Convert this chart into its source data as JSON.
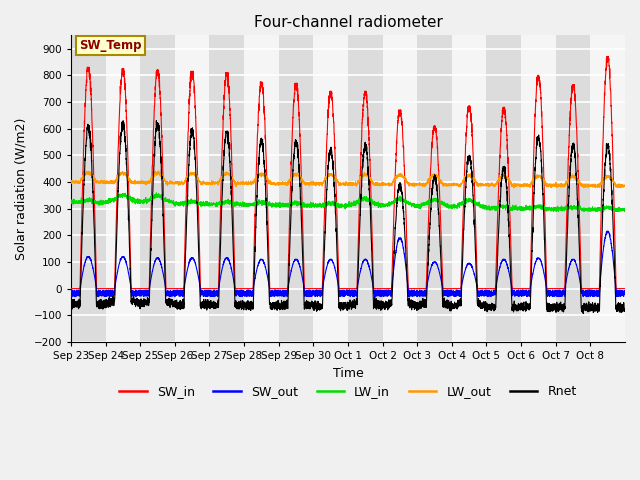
{
  "title": "Four-channel radiometer",
  "xlabel": "Time",
  "ylabel": "Solar radiation (W/m2)",
  "ylim": [
    -200,
    950
  ],
  "yticks": [
    -200,
    -100,
    0,
    100,
    200,
    300,
    400,
    500,
    600,
    700,
    800,
    900
  ],
  "bg_color": "#f0f0f0",
  "plot_bg_light": "#f5f5f5",
  "plot_bg_dark": "#dcdcdc",
  "grid_color": "#ffffff",
  "sw_in_color": "#ff0000",
  "sw_out_color": "#0000ff",
  "lw_in_color": "#00dd00",
  "lw_out_color": "#ff9900",
  "rnet_color": "#000000",
  "annotation_text": "SW_Temp",
  "annotation_bg": "#ffffcc",
  "annotation_border": "#aa8800",
  "n_days": 16,
  "figsize": [
    6.4,
    4.8
  ],
  "dpi": 100,
  "tick_labels": [
    "Sep 23",
    "Sep 24",
    "Sep 25",
    "Sep 26",
    "Sep 27",
    "Sep 28",
    "Sep 29",
    "Sep 30",
    "Oct 1",
    "Oct 2",
    "Oct 3",
    "Oct 4",
    "Oct 5",
    "Oct 6",
    "Oct 7",
    "Oct 8"
  ]
}
